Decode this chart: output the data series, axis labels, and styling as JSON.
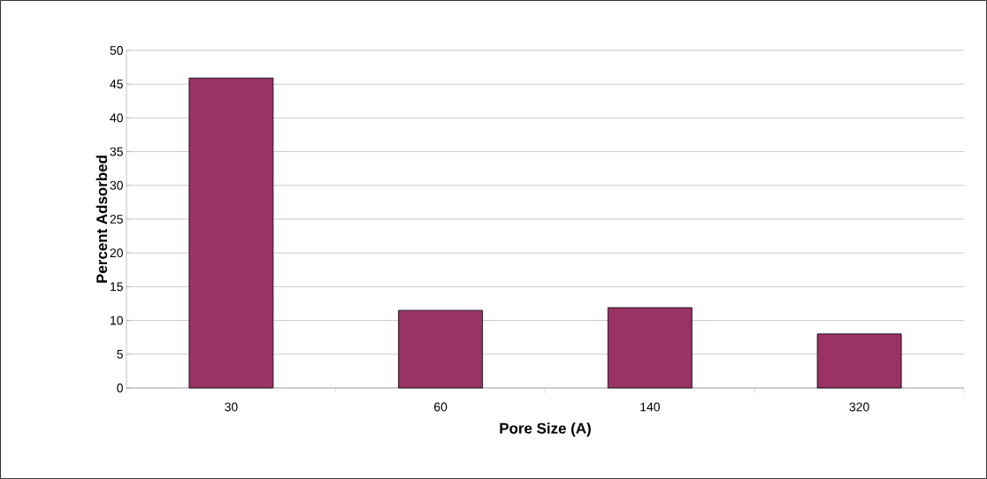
{
  "chart_data": {
    "type": "bar",
    "xlabel": "Pore Size (A)",
    "ylabel": "Percent Adsorbed",
    "categories": [
      "30",
      "60",
      "140",
      "320"
    ],
    "values": [
      45.9,
      11.5,
      11.9,
      8.0
    ],
    "color": "#993366",
    "ylim": [
      0,
      50
    ],
    "yticks": [
      0,
      5,
      10,
      15,
      20,
      25,
      30,
      35,
      40,
      45,
      50
    ],
    "grid": "y"
  }
}
